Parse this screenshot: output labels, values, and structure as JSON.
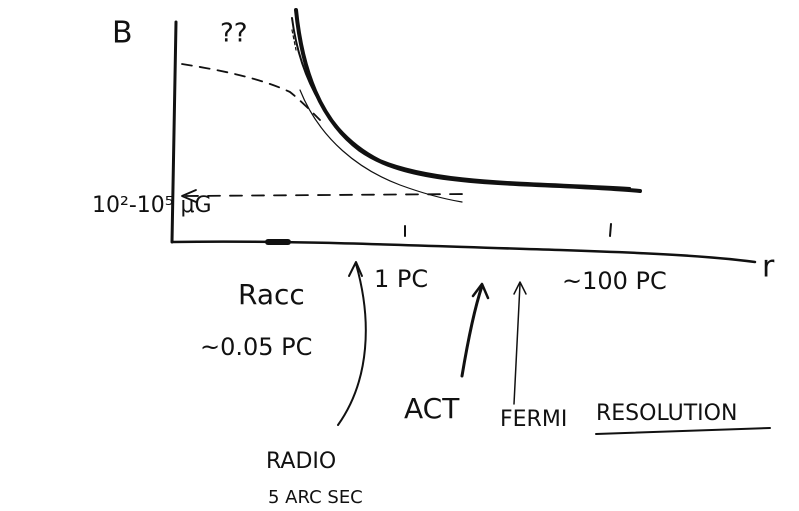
{
  "labels": {
    "y_axis": "B",
    "unknown": "??",
    "field_range": "10²-10⁵ μG",
    "x_axis": "r",
    "r_acc": "Racc",
    "r_acc_value": "~0.05 PC",
    "one_pc": "1 PC",
    "hundred_pc": "~100 PC",
    "act": "ACT",
    "fermi": "FERMI",
    "resolution": "RESOLUTION",
    "radio": "RADIO",
    "radio_resolution": "5 ARC SEC"
  }
}
